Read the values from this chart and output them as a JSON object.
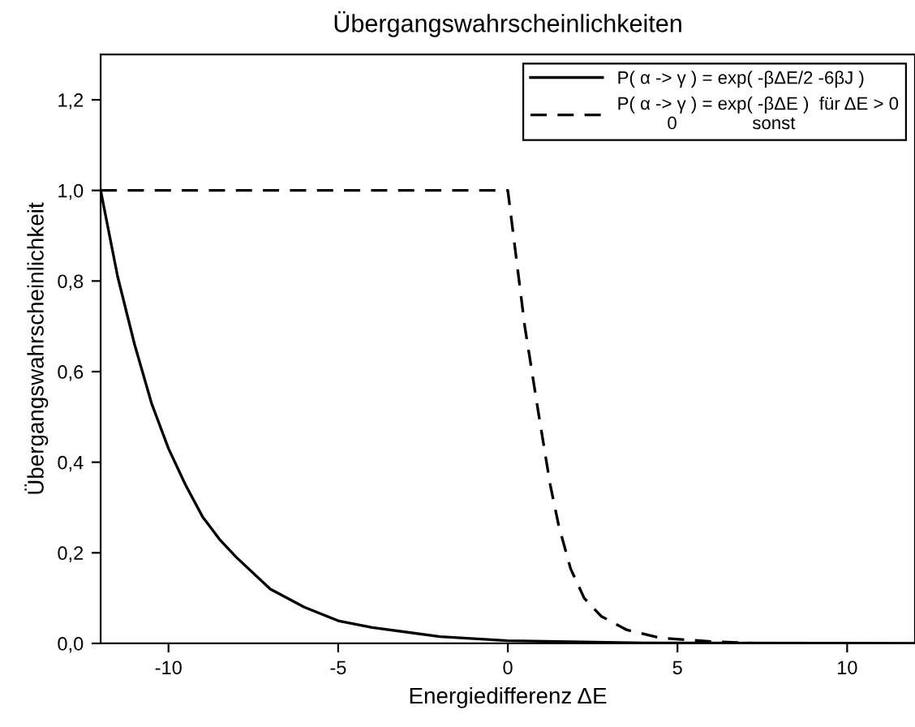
{
  "chart_data": {
    "type": "line",
    "title": "Übergangswahrscheinlichkeiten",
    "xlabel": "Energiedifferenz ΔE",
    "ylabel": "Übergangswahrscheinlichkeit",
    "xlim": [
      -12,
      12
    ],
    "ylim": [
      0,
      1.3
    ],
    "xticks": [
      -10,
      -5,
      0,
      5,
      10
    ],
    "yticks": [
      {
        "value": 0,
        "label": "0,0"
      },
      {
        "value": 0.2,
        "label": "0,2"
      },
      {
        "value": 0.4,
        "label": "0,4"
      },
      {
        "value": 0.6,
        "label": "0,6"
      },
      {
        "value": 0.8,
        "label": "0,8"
      },
      {
        "value": 1.0,
        "label": "1,0"
      },
      {
        "value": 1.2,
        "label": "1,2"
      }
    ],
    "grid": false,
    "legend": "top right",
    "marker": "none",
    "series": [
      {
        "name": "P( α -> γ ) = exp( -βΔE/2 -6βJ )",
        "color": "#000000",
        "line_style": "solid",
        "x": [
          -12,
          -11.5,
          -11,
          -10.5,
          -10,
          -9.5,
          -9,
          -8.5,
          -8,
          -7,
          -6,
          -5,
          -4,
          -2,
          0,
          4,
          12
        ],
        "values": [
          1.0,
          0.81,
          0.66,
          0.53,
          0.43,
          0.35,
          0.28,
          0.23,
          0.19,
          0.12,
          0.08,
          0.05,
          0.035,
          0.015,
          0.006,
          0.001,
          0
        ]
      },
      {
        "name": "P( α -> γ ) = exp( -βΔE )  für ΔE > 0\n          0               sonst",
        "color": "#000000",
        "line_style": "dashed",
        "x": [
          -12,
          0,
          0.25,
          0.5,
          0.9,
          1.25,
          1.5,
          1.85,
          2.25,
          2.75,
          3.5,
          4.5,
          6,
          7.5
        ],
        "values": [
          1.0,
          1.0,
          0.85,
          0.7,
          0.51,
          0.35,
          0.26,
          0.165,
          0.1,
          0.06,
          0.03,
          0.012,
          0.004,
          0
        ]
      }
    ]
  }
}
